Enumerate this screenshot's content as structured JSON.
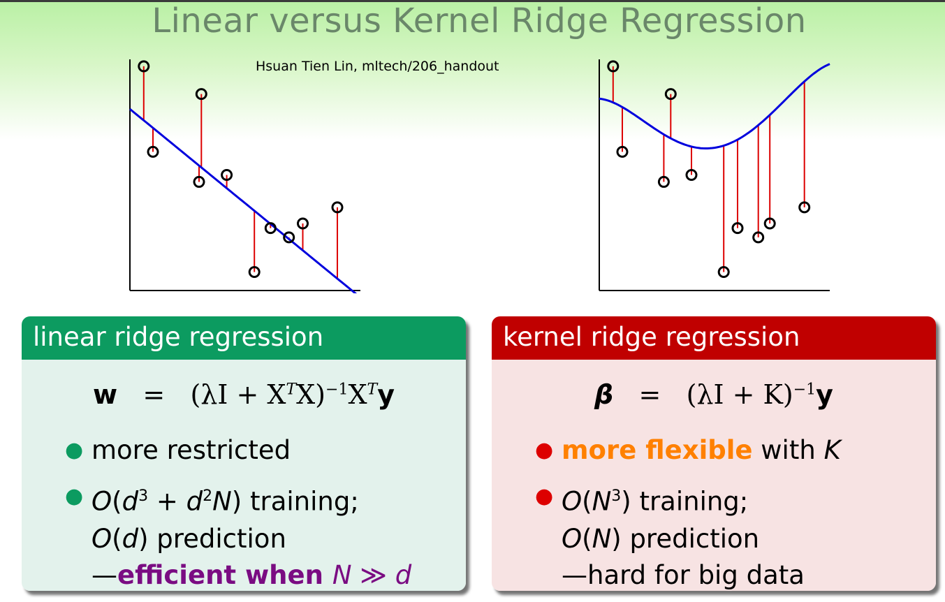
{
  "header": {
    "title": "Linear versus Kernel Ridge Regression",
    "credit": "Hsuan Tien Lin, mltech/206_handout"
  },
  "left_box": {
    "title": "linear ridge regression",
    "equation": {
      "lhs": "w",
      "equals": "=",
      "rhs_prefix": "(λI + X",
      "sup_t1": "T",
      "rhs_mid": "X)",
      "sup_inv": "−1",
      "rhs_x": "X",
      "sup_t2": "T",
      "rhs_y": "y"
    },
    "bullet1": "more restricted",
    "bullet2": {
      "p1": "O",
      "p2": "(",
      "p3": "d",
      "sup1": "3",
      "p4": " + ",
      "p5": "d",
      "sup2": "2",
      "p6": "N",
      "p7": ") training;"
    },
    "line3": {
      "p1": "O",
      "p2": "(",
      "p3": "d",
      "p4": ") prediction"
    },
    "line4": {
      "dash": "—",
      "bold": "efficient when ",
      "n": "N",
      "op": " ≫ ",
      "d": "d"
    }
  },
  "right_box": {
    "title": "kernel ridge regression",
    "equation": {
      "lhs": "β",
      "equals": "=",
      "rhs_prefix": "(λI + K)",
      "sup_inv": "−1",
      "rhs_y": "y"
    },
    "bullet1": {
      "bold": "more flexible",
      "rest": " with ",
      "k": "K"
    },
    "bullet2": {
      "p1": "O",
      "p2": "(",
      "p3": "N",
      "sup1": "3",
      "p4": ") training;"
    },
    "line3": {
      "p1": "O",
      "p2": "(",
      "p3": "N",
      "p4": ") prediction"
    },
    "line4": "—hard for big data"
  },
  "colors": {
    "left_header": "#0c9b60",
    "left_body": "#e3f2ec",
    "right_header": "#c00000",
    "right_body": "#f7e3e3",
    "fit_line": "#0000dd",
    "residual": "#dd0000",
    "highlight_purple": "#7a0c82",
    "highlight_orange": "#ff8000"
  },
  "chart_data": [
    {
      "type": "scatter",
      "title": "",
      "fit": "linear",
      "points": [
        {
          "x": 0.06,
          "y": 0.97
        },
        {
          "x": 0.1,
          "y": 0.6
        },
        {
          "x": 0.3,
          "y": 0.47
        },
        {
          "x": 0.31,
          "y": 0.85
        },
        {
          "x": 0.42,
          "y": 0.5
        },
        {
          "x": 0.54,
          "y": 0.08
        },
        {
          "x": 0.61,
          "y": 0.27
        },
        {
          "x": 0.69,
          "y": 0.23
        },
        {
          "x": 0.75,
          "y": 0.29
        },
        {
          "x": 0.9,
          "y": 0.36
        }
      ]
    },
    {
      "type": "scatter",
      "title": "",
      "fit": "kernel",
      "points": [
        {
          "x": 0.06,
          "y": 0.97
        },
        {
          "x": 0.1,
          "y": 0.6
        },
        {
          "x": 0.28,
          "y": 0.47
        },
        {
          "x": 0.31,
          "y": 0.85
        },
        {
          "x": 0.4,
          "y": 0.5
        },
        {
          "x": 0.54,
          "y": 0.08
        },
        {
          "x": 0.6,
          "y": 0.27
        },
        {
          "x": 0.69,
          "y": 0.23
        },
        {
          "x": 0.74,
          "y": 0.29
        },
        {
          "x": 0.89,
          "y": 0.36
        }
      ]
    }
  ]
}
